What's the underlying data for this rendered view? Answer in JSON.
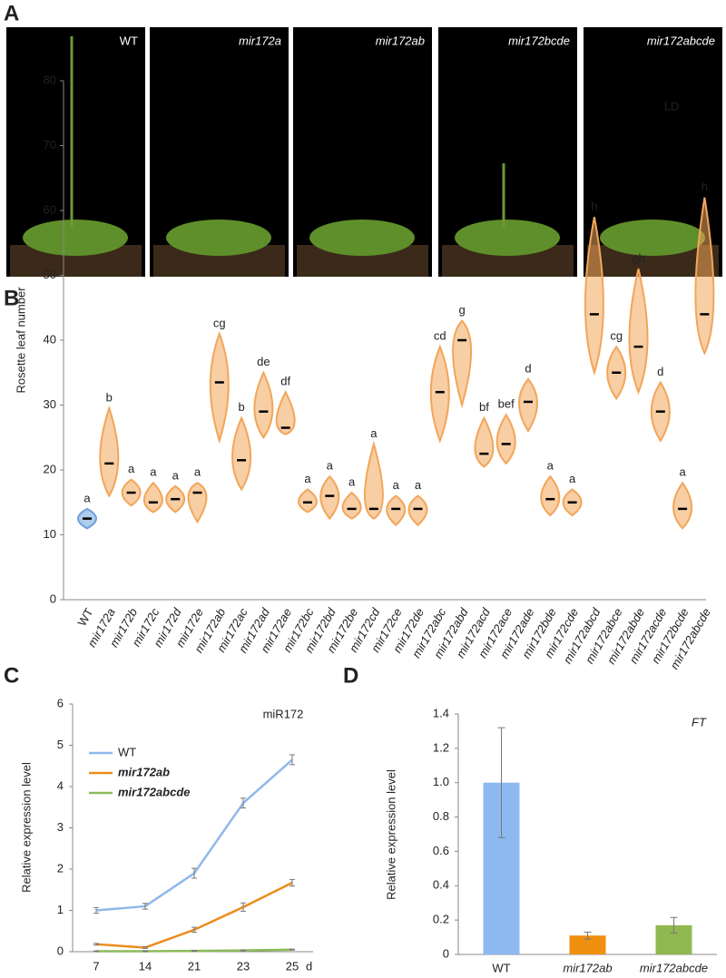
{
  "panel_labels": [
    "A",
    "B",
    "C",
    "D"
  ],
  "photos": {
    "labels": [
      "WT",
      "mir172a",
      "mir172ab",
      "mir172bcde",
      "mir172abcde"
    ]
  },
  "chart_data": [
    {
      "type": "violin",
      "ylabel": "Rosette leaf number",
      "annotation": "LD",
      "categories": [
        "WT",
        "mir172a",
        "mir172b",
        "mir172c",
        "mir172d",
        "mir172e",
        "mir172ab",
        "mir172ac",
        "mir172ad",
        "mir172ae",
        "mir172bc",
        "mir172bd",
        "mir172be",
        "mir172cd",
        "mir172ce",
        "mir172de",
        "mir172abc",
        "mir172abd",
        "mir172acd",
        "mir172ace",
        "mir172ade",
        "mir172bde",
        "mir172cde",
        "mir172abcd",
        "mir172abce",
        "mir172abde",
        "mir172acde",
        "mir172bcde",
        "mir172abcde"
      ],
      "values": [
        12.5,
        21,
        16.5,
        15,
        15.5,
        16.5,
        33.5,
        21.5,
        29,
        26.5,
        15,
        16,
        14,
        14,
        14,
        14,
        32,
        40,
        22.5,
        24,
        30.5,
        15.5,
        15,
        44,
        35,
        39,
        29,
        14,
        44
      ],
      "min": [
        11,
        16,
        14.5,
        13.5,
        13.5,
        12,
        24.5,
        17,
        25,
        25.5,
        13.5,
        12.5,
        12.5,
        12.5,
        11.5,
        11.5,
        24.5,
        30,
        20.5,
        21,
        26,
        13,
        13,
        35,
        31,
        32,
        24.5,
        11,
        38
      ],
      "max": [
        14,
        29.5,
        18.5,
        18,
        17.5,
        18,
        41,
        28,
        35,
        32,
        17,
        19,
        16.5,
        24,
        16,
        16,
        39,
        43,
        28,
        28.5,
        34,
        19,
        17,
        59,
        39,
        51,
        33.5,
        18,
        62
      ],
      "letters": [
        "a",
        "b",
        "a",
        "a",
        "a",
        "a",
        "cg",
        "b",
        "de",
        "df",
        "a",
        "a",
        "a",
        "a",
        "a",
        "a",
        "cd",
        "g",
        "bf",
        "bef",
        "d",
        "a",
        "a",
        "h",
        "cg",
        "gh",
        "d",
        "a",
        "h"
      ],
      "colors": [
        "#6fa0dc",
        "#f2a65a",
        "#f2a65a",
        "#f2a65a",
        "#f2a65a",
        "#f2a65a",
        "#f2a65a",
        "#f2a65a",
        "#f2a65a",
        "#f2a65a",
        "#f2a65a",
        "#f2a65a",
        "#f2a65a",
        "#f2a65a",
        "#f2a65a",
        "#f2a65a",
        "#f2a65a",
        "#f2a65a",
        "#f2a65a",
        "#f2a65a",
        "#f2a65a",
        "#f2a65a",
        "#f2a65a",
        "#f2a65a",
        "#f2a65a",
        "#f2a65a",
        "#f2a65a",
        "#f2a65a",
        "#f2a65a"
      ],
      "ylim": [
        0,
        80
      ],
      "yticks": [
        0,
        10,
        20,
        30,
        40,
        50,
        60,
        70,
        80
      ]
    },
    {
      "type": "line",
      "ylabel": "Relative expression level",
      "annotation": "miR172",
      "xlabel": "d",
      "categories": [
        "7",
        "14",
        "21",
        "23",
        "25"
      ],
      "series": [
        {
          "name": "WT",
          "color": "#8fb8ec",
          "values": [
            1.0,
            1.1,
            1.9,
            3.6,
            4.65
          ],
          "errors": [
            0.07,
            0.07,
            0.12,
            0.12,
            0.12
          ]
        },
        {
          "name": "mir172ab",
          "color": "#ed8b1c",
          "values": [
            0.18,
            0.1,
            0.53,
            1.08,
            1.67
          ],
          "errors": [
            0.02,
            0.02,
            0.06,
            0.1,
            0.08
          ]
        },
        {
          "name": "mir172abcde",
          "color": "#8cba5a",
          "values": [
            0.01,
            0.01,
            0.02,
            0.03,
            0.05
          ],
          "errors": [
            0.01,
            0.01,
            0.01,
            0.01,
            0.01
          ]
        }
      ],
      "ylim": [
        0,
        6
      ],
      "yticks": [
        0,
        1,
        2,
        3,
        4,
        5,
        6
      ],
      "legend": "upper left"
    },
    {
      "type": "bar",
      "title": "FT",
      "ylabel": "Relative expression level",
      "categories": [
        "WT",
        "mir172ab",
        "mir172abcde"
      ],
      "values": [
        1.0,
        0.11,
        0.17
      ],
      "errors": [
        0.32,
        0.02,
        0.045
      ],
      "colors": [
        "#8db8f0",
        "#f0900f",
        "#90b850"
      ],
      "ylim": [
        0,
        1.4
      ],
      "yticks": [
        0,
        0.2,
        0.4,
        0.6,
        0.8,
        {
          "value": 1,
          "label": "1.0"
        },
        1.2,
        1.4
      ]
    }
  ]
}
